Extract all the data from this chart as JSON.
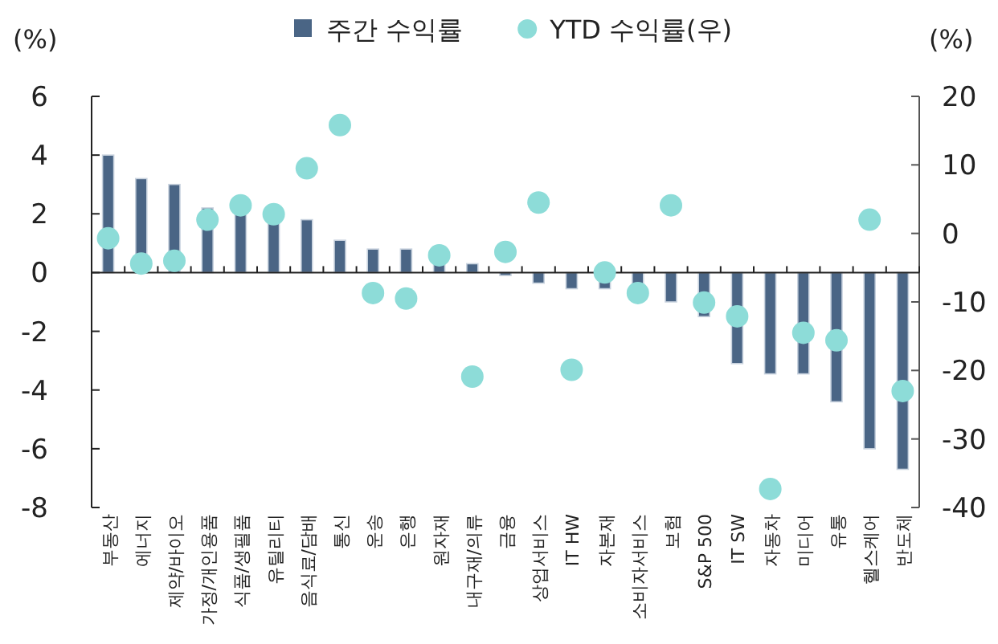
{
  "chart_data": {
    "type": "bar",
    "categories": [
      "부동산",
      "에너지",
      "제약/바이오",
      "가정/개인용품",
      "식품/생필품",
      "유틸리티",
      "음식료/담배",
      "통신",
      "운송",
      "은행",
      "원자재",
      "내구재/의류",
      "금융",
      "상업서비스",
      "IT HW",
      "자본재",
      "소비자서비스",
      "보험",
      "S&P 500",
      "IT SW",
      "자동차",
      "미디어",
      "유통",
      "헬스케어",
      "반도체"
    ],
    "series": [
      {
        "name": "주간 수익률",
        "color": "#4a6585",
        "values": [
          4.0,
          3.2,
          3.0,
          2.2,
          2.1,
          1.8,
          1.8,
          1.1,
          0.8,
          0.8,
          0.3,
          0.3,
          -0.1,
          -0.36,
          -0.55,
          -0.55,
          -0.5,
          -1.0,
          -1.5,
          -3.1,
          -3.45,
          -3.45,
          -4.4,
          -6.0,
          -6.7
        ]
      },
      {
        "name": "YTD 수익률(우)",
        "type": "scatter",
        "axis": "y2",
        "marker": "circle",
        "color": "#8ddcd8",
        "values": [
          -0.7,
          -4.4,
          -4.0,
          2.0,
          4.1,
          2.8,
          9.5,
          15.8,
          -8.7,
          -9.5,
          -3.2,
          -20.9,
          -2.7,
          4.5,
          -19.9,
          -5.7,
          -8.7,
          4.1,
          -10.1,
          -12.1,
          -37.3,
          -14.5,
          -15.6,
          2.0,
          -23.0
        ]
      }
    ],
    "ylabel": "(%)",
    "y2label": "(%)",
    "ylim": [
      -8,
      6
    ],
    "yticks": [
      -8,
      -6,
      -4,
      -2,
      0,
      2,
      4,
      6
    ],
    "y2lim": [
      -40,
      20
    ],
    "y2ticks": [
      -40,
      -30,
      -20,
      -10,
      0,
      10,
      20
    ],
    "legend": "top"
  }
}
